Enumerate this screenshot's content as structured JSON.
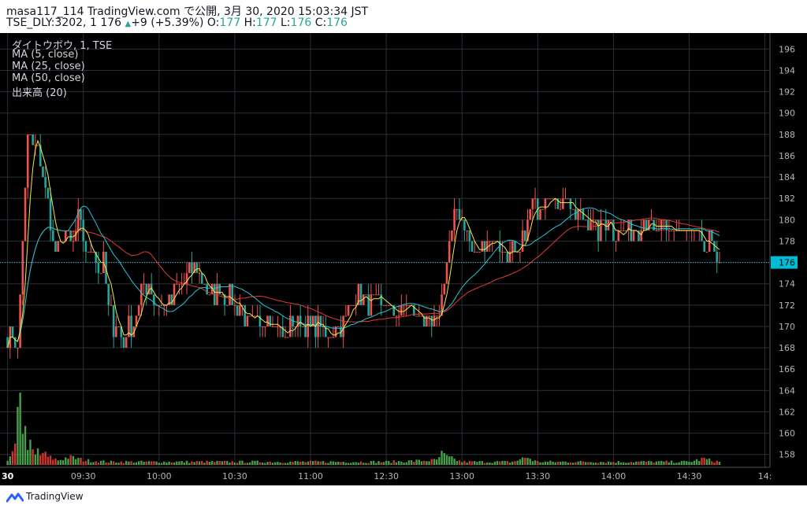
{
  "header": {
    "title_line": "masa117_114 TradingView.com で公開, 3月 30, 2020 15:03:34 JST",
    "symbol_line": {
      "symbol": "TSE_DLY:3202, 1",
      "last": "176",
      "arrow": "▲",
      "change": "+9 (+5.39%)",
      "o_label": "O:",
      "o_value": "177",
      "h_label": "H:",
      "h_value": "177",
      "l_label": "L:",
      "l_value": "176",
      "c_label": "C:",
      "c_value": "176"
    }
  },
  "legend": {
    "symbol": "ダイトウボウ, 1, TSE",
    "ma5": "MA (5, close)",
    "ma25": "MA (25, close)",
    "ma50": "MA (50, close)",
    "volume": "出来高 (20)"
  },
  "price_label": "176",
  "footer": {
    "brand": "TradingView"
  },
  "colors": {
    "up": "#ef5350",
    "down": "#26a69a",
    "ma5": "#f2e94a",
    "ma25": "#26c6da",
    "ma50": "#e53935",
    "vol_up": "#4caf50",
    "vol_down": "#e53935",
    "grid": "#2a2e39"
  },
  "chart_data": {
    "type": "candlestick",
    "interval": "1 minute",
    "y_ticks": [
      "158",
      "160",
      "162",
      "164",
      "166",
      "168",
      "170",
      "172",
      "174",
      "176",
      "178",
      "180",
      "182",
      "184",
      "186",
      "188",
      "190",
      "192",
      "194",
      "196"
    ],
    "ylim": [
      156.8,
      197.5
    ],
    "x_ticks": [
      {
        "label": "30",
        "t": 0
      },
      {
        "label": "09:30",
        "t": 30
      },
      {
        "label": "10:00",
        "t": 60
      },
      {
        "label": "10:30",
        "t": 90
      },
      {
        "label": "11:00",
        "t": 120
      },
      {
        "label": "12:30",
        "t": 150
      },
      {
        "label": "13:00",
        "t": 180
      },
      {
        "label": "13:30",
        "t": 210
      },
      {
        "label": "14:00",
        "t": 240
      },
      {
        "label": "14:30",
        "t": 270
      },
      {
        "label": "14:",
        "t": 300
      }
    ],
    "x_range": [
      -3,
      302
    ],
    "close_anchors": [
      [
        0,
        169
      ],
      [
        2,
        169
      ],
      [
        4,
        168
      ],
      [
        6,
        178
      ],
      [
        8,
        188
      ],
      [
        10,
        187
      ],
      [
        12,
        186
      ],
      [
        14,
        184
      ],
      [
        16,
        182
      ],
      [
        18,
        178
      ],
      [
        20,
        177
      ],
      [
        22,
        179
      ],
      [
        24,
        178
      ],
      [
        26,
        178
      ],
      [
        28,
        180
      ],
      [
        30,
        178
      ],
      [
        32,
        176
      ],
      [
        34,
        178
      ],
      [
        36,
        175
      ],
      [
        38,
        176
      ],
      [
        40,
        172
      ],
      [
        42,
        170
      ],
      [
        44,
        170
      ],
      [
        46,
        168
      ],
      [
        48,
        170
      ],
      [
        50,
        170
      ],
      [
        52,
        172
      ],
      [
        54,
        174
      ],
      [
        56,
        174
      ],
      [
        58,
        172
      ],
      [
        60,
        172
      ],
      [
        62,
        172
      ],
      [
        64,
        172
      ],
      [
        66,
        173
      ],
      [
        68,
        174
      ],
      [
        70,
        174
      ],
      [
        72,
        175
      ],
      [
        74,
        176
      ],
      [
        76,
        175
      ],
      [
        78,
        174
      ],
      [
        80,
        173
      ],
      [
        82,
        173
      ],
      [
        84,
        174
      ],
      [
        86,
        173
      ],
      [
        88,
        173
      ],
      [
        90,
        172
      ],
      [
        92,
        172
      ],
      [
        94,
        171
      ],
      [
        96,
        170
      ],
      [
        98,
        170
      ],
      [
        100,
        170
      ],
      [
        102,
        171
      ],
      [
        104,
        171
      ],
      [
        106,
        170
      ],
      [
        108,
        170
      ],
      [
        110,
        169
      ],
      [
        112,
        170
      ],
      [
        114,
        170
      ],
      [
        116,
        171
      ],
      [
        118,
        170
      ],
      [
        120,
        170
      ],
      [
        122,
        170
      ],
      [
        124,
        170
      ],
      [
        126,
        169
      ],
      [
        128,
        169
      ],
      [
        130,
        170
      ],
      [
        132,
        170
      ],
      [
        134,
        171
      ],
      [
        136,
        172
      ],
      [
        138,
        173
      ],
      [
        140,
        173
      ],
      [
        142,
        172
      ],
      [
        144,
        172
      ],
      [
        146,
        172
      ],
      [
        148,
        172
      ],
      [
        150,
        172
      ],
      [
        152,
        171
      ],
      [
        154,
        171
      ],
      [
        156,
        171
      ],
      [
        158,
        172
      ],
      [
        160,
        172
      ],
      [
        162,
        171
      ],
      [
        164,
        171
      ],
      [
        166,
        170
      ],
      [
        168,
        170
      ],
      [
        170,
        170
      ],
      [
        172,
        173
      ],
      [
        174,
        176
      ],
      [
        176,
        179
      ],
      [
        178,
        181
      ],
      [
        180,
        180
      ],
      [
        182,
        179
      ],
      [
        184,
        177
      ],
      [
        186,
        177
      ],
      [
        188,
        178
      ],
      [
        190,
        178
      ],
      [
        192,
        178
      ],
      [
        194,
        178
      ],
      [
        196,
        177
      ],
      [
        198,
        177
      ],
      [
        200,
        177
      ],
      [
        202,
        176
      ],
      [
        204,
        178
      ],
      [
        206,
        180
      ],
      [
        208,
        182
      ],
      [
        210,
        181
      ],
      [
        212,
        182
      ],
      [
        214,
        183
      ],
      [
        216,
        182
      ],
      [
        218,
        181
      ],
      [
        220,
        182
      ],
      [
        222,
        182
      ],
      [
        224,
        180
      ],
      [
        226,
        181
      ],
      [
        228,
        180
      ],
      [
        230,
        180
      ],
      [
        232,
        180
      ],
      [
        234,
        179
      ],
      [
        236,
        180
      ],
      [
        238,
        180
      ],
      [
        240,
        179
      ],
      [
        242,
        179
      ],
      [
        244,
        179
      ],
      [
        246,
        179
      ],
      [
        248,
        179
      ],
      [
        250,
        179
      ],
      [
        252,
        180
      ],
      [
        254,
        180
      ],
      [
        256,
        179
      ],
      [
        258,
        179
      ],
      [
        260,
        179
      ],
      [
        262,
        179
      ],
      [
        264,
        179
      ],
      [
        266,
        179
      ],
      [
        268,
        179
      ],
      [
        270,
        179
      ],
      [
        272,
        179
      ],
      [
        274,
        178
      ],
      [
        276,
        177
      ],
      [
        278,
        178
      ],
      [
        280,
        177
      ],
      [
        282,
        176
      ]
    ],
    "volume_anchors": [
      [
        0,
        2
      ],
      [
        3,
        10
      ],
      [
        4,
        30
      ],
      [
        5,
        60
      ],
      [
        6,
        25
      ],
      [
        7,
        20
      ],
      [
        8,
        14
      ],
      [
        9,
        12
      ],
      [
        10,
        8
      ],
      [
        11,
        6
      ],
      [
        12,
        9
      ],
      [
        13,
        6
      ],
      [
        14,
        8
      ],
      [
        16,
        5
      ],
      [
        18,
        4
      ],
      [
        20,
        3
      ],
      [
        24,
        5
      ],
      [
        28,
        4
      ],
      [
        30,
        3
      ],
      [
        40,
        2
      ],
      [
        60,
        2
      ],
      [
        90,
        2
      ],
      [
        110,
        2
      ],
      [
        120,
        2
      ],
      [
        150,
        2
      ],
      [
        170,
        3
      ],
      [
        172,
        7
      ],
      [
        174,
        5
      ],
      [
        176,
        4
      ],
      [
        178,
        3
      ],
      [
        180,
        2
      ],
      [
        200,
        2
      ],
      [
        204,
        4
      ],
      [
        206,
        5
      ],
      [
        208,
        3
      ],
      [
        210,
        2
      ],
      [
        240,
        2
      ],
      [
        270,
        2
      ],
      [
        276,
        4
      ],
      [
        278,
        3
      ],
      [
        282,
        2
      ]
    ],
    "ma_periods": {
      "ma5": 5,
      "ma25": 25,
      "ma50": 50
    }
  }
}
